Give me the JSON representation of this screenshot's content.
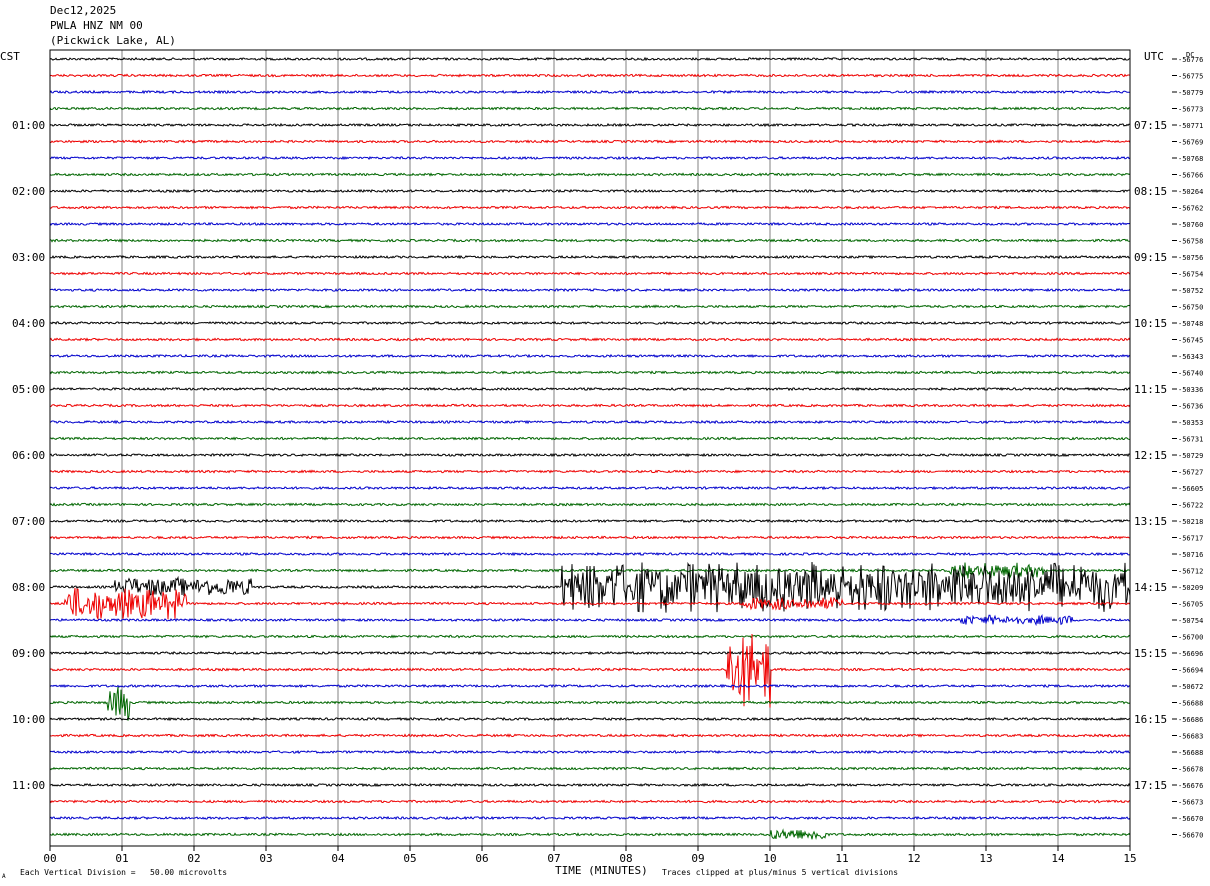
{
  "header": {
    "date": "Dec12,2025",
    "station": "PWLA HNZ NM 00",
    "location": "(Pickwick Lake, AL)"
  },
  "footer": {
    "scale_note": "Each Vertical Division =   50.00 microvolts",
    "clip_note": "Traces clipped at plus/minus 5 vertical divisions",
    "corner_mark": "A"
  },
  "colors": {
    "trace_cycle": [
      "#000000",
      "#ee0000",
      "#0000cc",
      "#006600"
    ],
    "grid": "#808080",
    "axis": "#000000"
  },
  "chart_data": {
    "type": "line",
    "title": "",
    "xlabel": "TIME (MINUTES)",
    "left_axis_label": "CST",
    "right_axis_label": "UTC",
    "dc_label": "DC",
    "xlim": [
      0,
      15
    ],
    "x_ticks": [
      "00",
      "01",
      "02",
      "03",
      "04",
      "05",
      "06",
      "07",
      "08",
      "09",
      "10",
      "11",
      "12",
      "13",
      "14",
      "15"
    ],
    "rows_per_hour": 4,
    "row_count": 48,
    "cst_hour_labels": [
      "01:00",
      "02:00",
      "03:00",
      "04:00",
      "05:00",
      "06:00",
      "07:00",
      "08:00",
      "09:00",
      "10:00",
      "11:00"
    ],
    "cst_label_rows": [
      4,
      8,
      12,
      16,
      20,
      24,
      28,
      32,
      36,
      40,
      44
    ],
    "utc_hour_labels": [
      "07:15",
      "08:15",
      "09:15",
      "10:15",
      "11:15",
      "12:15",
      "13:15",
      "14:15",
      "15:15",
      "16:15",
      "17:15"
    ],
    "utc_label_rows": [
      4,
      8,
      12,
      16,
      20,
      24,
      28,
      32,
      36,
      40,
      44
    ],
    "dc_offsets": [
      "-56776",
      "-56775",
      "-50779",
      "-56773",
      "-50771",
      "-56769",
      "-50768",
      "-56766",
      "-50264",
      "-56762",
      "-50760",
      "-56758",
      "-50756",
      "-56754",
      "-50752",
      "-56750",
      "-50748",
      "-56745",
      "-56343",
      "-56740",
      "-50336",
      "-56736",
      "-50353",
      "-56731",
      "-50729",
      "-56727",
      "-56605",
      "-56722",
      "-50218",
      "-56717",
      "-50716",
      "-56712",
      "-50209",
      "-56705",
      "-50754",
      "-56700",
      "-56696",
      "-56694",
      "-50672",
      "-56688",
      "-56686",
      "-56683",
      "-56688",
      "-56678",
      "-56676",
      "-56673",
      "-56670",
      "-56670"
    ],
    "events": [
      {
        "row": 32,
        "start_min": 0.9,
        "end_min": 2.8,
        "amplitude": 0.6
      },
      {
        "row": 32,
        "start_min": 7.1,
        "end_min": 15.0,
        "amplitude": 1.6
      },
      {
        "row": 33,
        "start_min": 0.2,
        "end_min": 1.9,
        "amplitude": 1.0
      },
      {
        "row": 33,
        "start_min": 9.6,
        "end_min": 11.0,
        "amplitude": 0.4
      },
      {
        "row": 31,
        "start_min": 12.5,
        "end_min": 13.8,
        "amplitude": 0.5
      },
      {
        "row": 34,
        "start_min": 12.6,
        "end_min": 14.2,
        "amplitude": 0.3
      },
      {
        "row": 37,
        "start_min": 9.4,
        "end_min": 10.0,
        "amplitude": 2.5
      },
      {
        "row": 39,
        "start_min": 0.8,
        "end_min": 1.1,
        "amplitude": 1.2
      },
      {
        "row": 47,
        "start_min": 10.0,
        "end_min": 10.8,
        "amplitude": 0.4
      }
    ]
  }
}
